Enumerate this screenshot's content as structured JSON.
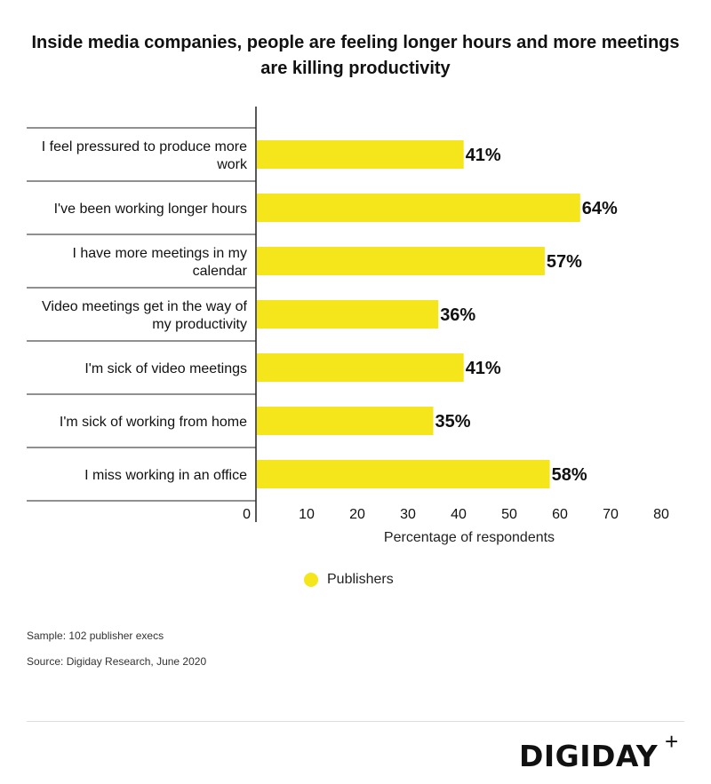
{
  "title": "Inside media companies, people are feeling longer hours and more meetings are killing productivity",
  "chart_data": {
    "type": "bar",
    "orientation": "horizontal",
    "categories": [
      "I feel pressured to produce more work",
      "I've been working longer hours",
      "I have more meetings in my calendar",
      "Video meetings get in the way of my productivity",
      "I'm sick of video meetings",
      "I'm sick of working from home",
      "I miss working in an office"
    ],
    "category_lines": [
      [
        "I feel pressured to produce more",
        "work"
      ],
      [
        "I've been working longer hours"
      ],
      [
        "I have more meetings in my",
        "calendar"
      ],
      [
        "Video meetings get in the way of",
        "my productivity"
      ],
      [
        "I'm sick of video meetings"
      ],
      [
        "I'm sick of working from home"
      ],
      [
        "I miss working in an office"
      ]
    ],
    "series": [
      {
        "name": "Publishers",
        "values": [
          41,
          64,
          57,
          36,
          41,
          35,
          58
        ]
      }
    ],
    "value_labels": [
      "41%",
      "64%",
      "57%",
      "36%",
      "41%",
      "35%",
      "58%"
    ],
    "xlabel": "Percentage of respondents",
    "xlim": [
      0,
      80
    ],
    "xticks": [
      0,
      10,
      20,
      30,
      40,
      50,
      60,
      70,
      80
    ],
    "bar_color": "#f5e51b",
    "grid": false,
    "legend_position": "bottom"
  },
  "legend": {
    "label": "Publishers",
    "color": "#f5e51b"
  },
  "notes": {
    "sample": "Sample: 102 publisher execs",
    "source": "Source: Digiday Research, June 2020"
  },
  "brand": {
    "logo_text": "DIGIDAY",
    "logo_plus": "+"
  }
}
